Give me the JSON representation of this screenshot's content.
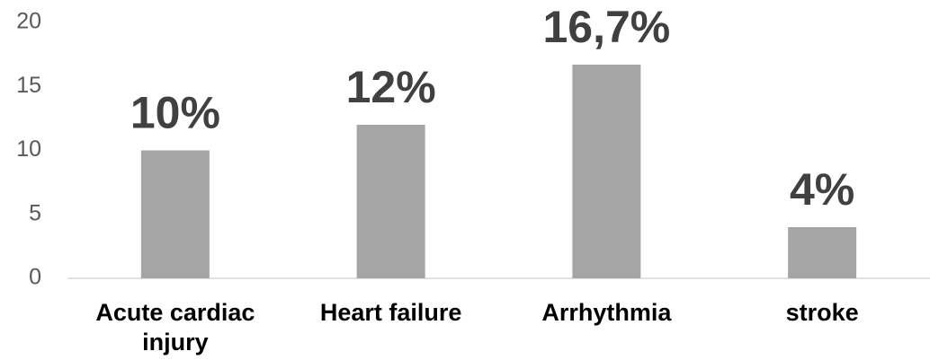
{
  "chart_data": {
    "type": "bar",
    "categories": [
      "Acute cardiac injury",
      "Heart failure",
      "Arrhythmia",
      "stroke"
    ],
    "values": [
      10,
      12,
      16.7,
      4
    ],
    "value_labels": [
      "10%",
      "12%",
      "16,7%",
      "4%"
    ],
    "color": "#a5a5a5",
    "ylim": [
      0,
      20
    ],
    "yticks": [
      0,
      5,
      10,
      15,
      20
    ],
    "grid": false
  }
}
